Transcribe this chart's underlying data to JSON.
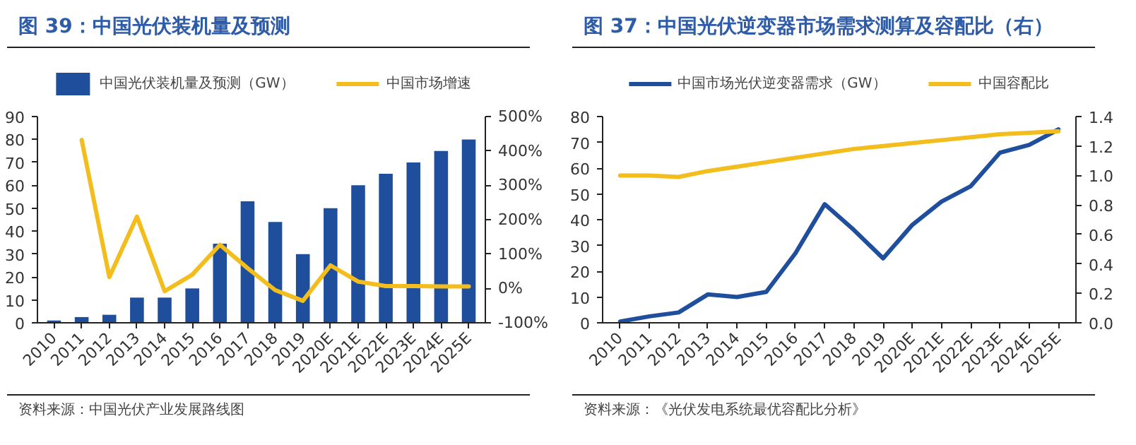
{
  "chart_data": [
    {
      "type": "bar",
      "title": "图 39：中国光伏装机量及预测",
      "categories": [
        "2010",
        "2011",
        "2012",
        "2013",
        "2014",
        "2015",
        "2016",
        "2017",
        "2018",
        "2019",
        "2020E",
        "2021E",
        "2022E",
        "2023E",
        "2024E",
        "2025E"
      ],
      "series": [
        {
          "name": "中国光伏装机量及预测（GW）",
          "type": "bar",
          "color": "#1f4e9c",
          "values": [
            1,
            2.5,
            3.5,
            11,
            11,
            15,
            34.5,
            53,
            44,
            30,
            50,
            60,
            65,
            70,
            75,
            80
          ]
        },
        {
          "name": "中国市场增速",
          "type": "line",
          "axis": "y2",
          "color": "#f2bd1d",
          "values": [
            null,
            432,
            33,
            209,
            -8,
            40,
            127,
            59,
            -5,
            -36,
            67,
            20,
            7,
            7,
            6,
            6
          ]
        }
      ],
      "ylim": [
        0,
        90
      ],
      "yticks": [
        0,
        10,
        20,
        30,
        40,
        50,
        60,
        70,
        80,
        90
      ],
      "y2lim": [
        -100,
        500
      ],
      "y2ticks": [
        {
          "value": -100,
          "label": "-100%"
        },
        {
          "value": 0,
          "label": "0%"
        },
        {
          "value": 100,
          "label": "100%"
        },
        {
          "value": 200,
          "label": "200%"
        },
        {
          "value": 300,
          "label": "300%"
        },
        {
          "value": 400,
          "label": "400%"
        },
        {
          "value": 500,
          "label": "500%"
        }
      ],
      "legend": "top",
      "annotations": [
        "资料来源：中国光伏产业发展路线图"
      ]
    },
    {
      "type": "line",
      "title": "图 37：中国光伏逆变器市场需求测算及容配比（右）",
      "categories": [
        "2010",
        "2011",
        "2012",
        "2013",
        "2014",
        "2015",
        "2016",
        "2017",
        "2018",
        "2019",
        "2020E",
        "2021E",
        "2022E",
        "2023E",
        "2024E",
        "2025E"
      ],
      "series": [
        {
          "name": "中国市场光伏逆变器需求（GW）",
          "color": "#1f4e9c",
          "values": [
            0.5,
            2.5,
            4,
            11,
            10,
            12,
            27,
            46,
            36,
            25,
            38,
            47,
            53,
            66,
            69,
            75
          ]
        },
        {
          "name": "中国容配比",
          "axis": "y2",
          "color": "#f2bd1d",
          "values": [
            1.0,
            1.0,
            0.99,
            1.03,
            1.06,
            1.09,
            1.12,
            1.15,
            1.18,
            1.2,
            1.22,
            1.24,
            1.26,
            1.28,
            1.29,
            1.3
          ]
        }
      ],
      "ylim": [
        0,
        80
      ],
      "yticks": [
        0,
        10,
        20,
        30,
        40,
        50,
        60,
        70,
        80
      ],
      "y2lim": [
        0,
        1.4
      ],
      "y2ticks": [
        {
          "value": 0,
          "label": "0.0"
        },
        {
          "value": 0.2,
          "label": "0.2"
        },
        {
          "value": 0.4,
          "label": "0.4"
        },
        {
          "value": 0.6,
          "label": "0.6"
        },
        {
          "value": 0.8,
          "label": "0.8"
        },
        {
          "value": 1.0,
          "label": "1.0"
        },
        {
          "value": 1.2,
          "label": "1.2"
        },
        {
          "value": 1.4,
          "label": "1.4"
        }
      ],
      "legend": "top",
      "annotations": [
        "资料来源：《光伏发电系统最优容配比分析》"
      ]
    }
  ]
}
